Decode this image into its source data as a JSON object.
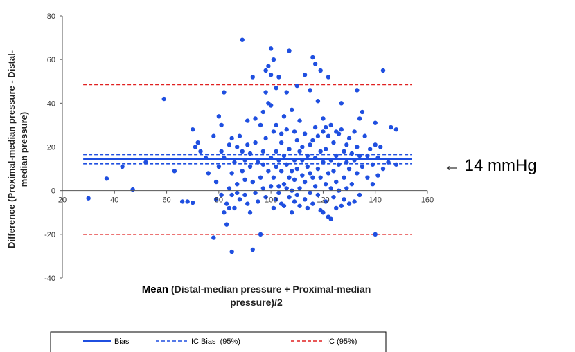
{
  "chart_data": {
    "type": "scatter",
    "title": "",
    "xlabel_bold": "Mean",
    "xlabel_rest_line1": " (Distal-median pressure + Proximal-median",
    "xlabel_line2": "pressure)/2",
    "ylabel_line1": "Difference (Proximal-median pressure - Distal-",
    "ylabel_line2": "median pressure)",
    "xlim": [
      20,
      160
    ],
    "ylim": [
      -40,
      80
    ],
    "xticks": [
      "20",
      "40",
      "60",
      "80",
      "100",
      "120",
      "140",
      "160"
    ],
    "yticks": [
      "80",
      "60",
      "40",
      "20",
      "0",
      "-20",
      "-40"
    ],
    "grid": false,
    "colors": {
      "points": "#1f4fe0",
      "bias": "#1f4fe0",
      "ic_bias": "#1f4fe0",
      "ic": "#e02020"
    },
    "reference_lines": [
      {
        "name": "Bias",
        "y": 14.5,
        "style": "solid"
      },
      {
        "name": "IC Bias (95%)",
        "y": 16.5,
        "style": "dashed"
      },
      {
        "name": "IC Bias (95%)",
        "y": 12.3,
        "style": "dashed"
      },
      {
        "name": "IC (95%)",
        "y": 48.5,
        "style": "dashed"
      },
      {
        "name": "IC (95%)",
        "y": -20,
        "style": "dashed"
      }
    ],
    "legend": {
      "position": "bottom",
      "entries": [
        "Bias",
        "IC Bias  (95%)",
        "IC (95%)"
      ]
    },
    "annotation": "← 14 mmHg",
    "points": [
      [
        30,
        -3.5
      ],
      [
        37,
        5.5
      ],
      [
        43,
        11
      ],
      [
        47,
        0.5
      ],
      [
        52,
        13
      ],
      [
        59,
        42
      ],
      [
        63,
        9
      ],
      [
        66,
        -5
      ],
      [
        68,
        -5
      ],
      [
        70,
        -5.5
      ],
      [
        70,
        28
      ],
      [
        71,
        20
      ],
      [
        72,
        22
      ],
      [
        73,
        18
      ],
      [
        75,
        15
      ],
      [
        76,
        8
      ],
      [
        78,
        25
      ],
      [
        78,
        -21.5
      ],
      [
        79,
        4
      ],
      [
        79,
        -4
      ],
      [
        80,
        11
      ],
      [
        80,
        34
      ],
      [
        81,
        30
      ],
      [
        81,
        18
      ],
      [
        81,
        -2
      ],
      [
        82,
        -10
      ],
      [
        82,
        45
      ],
      [
        82,
        15
      ],
      [
        83,
        -15.5
      ],
      [
        83,
        -6
      ],
      [
        84,
        21
      ],
      [
        84,
        1
      ],
      [
        84,
        -8
      ],
      [
        85,
        -2
      ],
      [
        85,
        8
      ],
      [
        85,
        24
      ],
      [
        85,
        -28
      ],
      [
        86,
        13
      ],
      [
        86,
        -8
      ],
      [
        87,
        3
      ],
      [
        87,
        20
      ],
      [
        87,
        -1
      ],
      [
        88,
        25
      ],
      [
        88,
        -4
      ],
      [
        89,
        69
      ],
      [
        89,
        9
      ],
      [
        89,
        18
      ],
      [
        90,
        -2
      ],
      [
        90,
        5
      ],
      [
        90,
        14
      ],
      [
        91,
        21
      ],
      [
        91,
        32
      ],
      [
        91,
        -6
      ],
      [
        92,
        -10
      ],
      [
        92,
        17
      ],
      [
        92,
        11
      ],
      [
        93,
        52
      ],
      [
        93,
        -27
      ],
      [
        93,
        4
      ],
      [
        94,
        -1
      ],
      [
        94,
        22
      ],
      [
        94,
        33
      ],
      [
        95,
        13
      ],
      [
        95,
        -5
      ],
      [
        96,
        -20
      ],
      [
        96,
        6
      ],
      [
        96,
        30
      ],
      [
        97,
        1
      ],
      [
        97,
        18
      ],
      [
        97,
        36
      ],
      [
        97,
        12
      ],
      [
        98,
        45
      ],
      [
        98,
        -3
      ],
      [
        98,
        24
      ],
      [
        98,
        55
      ],
      [
        99,
        57
      ],
      [
        99,
        40
      ],
      [
        99,
        9
      ],
      [
        100,
        2
      ],
      [
        100,
        65
      ],
      [
        100,
        53
      ],
      [
        100,
        39
      ],
      [
        100,
        15
      ],
      [
        101,
        -8
      ],
      [
        101,
        60
      ],
      [
        101,
        27
      ],
      [
        101,
        6
      ],
      [
        102,
        18
      ],
      [
        102,
        11
      ],
      [
        102,
        -4
      ],
      [
        102,
        47
      ],
      [
        102,
        30
      ],
      [
        103,
        52
      ],
      [
        103,
        2
      ],
      [
        103,
        14
      ],
      [
        103,
        -1
      ],
      [
        104,
        22
      ],
      [
        104,
        9
      ],
      [
        104,
        -6
      ],
      [
        104,
        26
      ],
      [
        105,
        34
      ],
      [
        105,
        3
      ],
      [
        105,
        16
      ],
      [
        105,
        -7
      ],
      [
        106,
        1
      ],
      [
        106,
        12
      ],
      [
        106,
        45
      ],
      [
        106,
        28
      ],
      [
        107,
        64
      ],
      [
        107,
        6
      ],
      [
        107,
        -3
      ],
      [
        107,
        19
      ],
      [
        108,
        9
      ],
      [
        108,
        37
      ],
      [
        108,
        0
      ],
      [
        108,
        -10
      ],
      [
        109,
        27
      ],
      [
        109,
        14
      ],
      [
        109,
        -5
      ],
      [
        109,
        5
      ],
      [
        110,
        48
      ],
      [
        110,
        23
      ],
      [
        110,
        -2
      ],
      [
        110,
        10
      ],
      [
        111,
        18
      ],
      [
        111,
        1
      ],
      [
        111,
        32
      ],
      [
        111,
        -7
      ],
      [
        112,
        7
      ],
      [
        112,
        20
      ],
      [
        112,
        14
      ],
      [
        113,
        -4
      ],
      [
        113,
        53
      ],
      [
        113,
        26
      ],
      [
        113,
        4
      ],
      [
        114,
        11
      ],
      [
        114,
        -8
      ],
      [
        114,
        16
      ],
      [
        115,
        46
      ],
      [
        115,
        -1
      ],
      [
        115,
        21
      ],
      [
        115,
        8
      ],
      [
        116,
        23
      ],
      [
        116,
        6
      ],
      [
        116,
        -6
      ],
      [
        116,
        61
      ],
      [
        117,
        29
      ],
      [
        117,
        15
      ],
      [
        117,
        2
      ],
      [
        117,
        58
      ],
      [
        118,
        41
      ],
      [
        118,
        10
      ],
      [
        118,
        -2
      ],
      [
        118,
        25
      ],
      [
        119,
        55
      ],
      [
        119,
        18
      ],
      [
        119,
        6
      ],
      [
        119,
        -9
      ],
      [
        120,
        33
      ],
      [
        120,
        -10
      ],
      [
        120,
        13
      ],
      [
        120,
        27
      ],
      [
        121,
        29
      ],
      [
        121,
        3
      ],
      [
        121,
        -5
      ],
      [
        121,
        19
      ],
      [
        122,
        52
      ],
      [
        122,
        8
      ],
      [
        122,
        -12
      ],
      [
        122,
        25
      ],
      [
        123,
        30
      ],
      [
        123,
        14
      ],
      [
        123,
        1
      ],
      [
        123,
        -13
      ],
      [
        124,
        22
      ],
      [
        124,
        9
      ],
      [
        124,
        -3
      ],
      [
        125,
        27
      ],
      [
        125,
        16
      ],
      [
        125,
        -8
      ],
      [
        125,
        4
      ],
      [
        126,
        26
      ],
      [
        126,
        12
      ],
      [
        126,
        0
      ],
      [
        127,
        40
      ],
      [
        127,
        28
      ],
      [
        127,
        -7
      ],
      [
        128,
        18
      ],
      [
        128,
        6
      ],
      [
        128,
        -4
      ],
      [
        129,
        21
      ],
      [
        129,
        13
      ],
      [
        129,
        1
      ],
      [
        130,
        24
      ],
      [
        130,
        10
      ],
      [
        130,
        -6
      ],
      [
        131,
        17
      ],
      [
        131,
        3
      ],
      [
        132,
        27
      ],
      [
        132,
        14
      ],
      [
        132,
        -5
      ],
      [
        133,
        46
      ],
      [
        133,
        20
      ],
      [
        133,
        8
      ],
      [
        134,
        33
      ],
      [
        134,
        16
      ],
      [
        134,
        -2
      ],
      [
        135,
        36
      ],
      [
        135,
        11
      ],
      [
        136,
        25
      ],
      [
        137,
        6
      ],
      [
        137,
        16
      ],
      [
        138,
        19
      ],
      [
        139,
        12
      ],
      [
        139,
        3
      ],
      [
        140,
        21
      ],
      [
        140,
        -20
      ],
      [
        140,
        31
      ],
      [
        141,
        7
      ],
      [
        141,
        15
      ],
      [
        142,
        20
      ],
      [
        143,
        55
      ],
      [
        143,
        10
      ],
      [
        145,
        13
      ],
      [
        146,
        29
      ],
      [
        148,
        28
      ],
      [
        148,
        12
      ]
    ]
  }
}
